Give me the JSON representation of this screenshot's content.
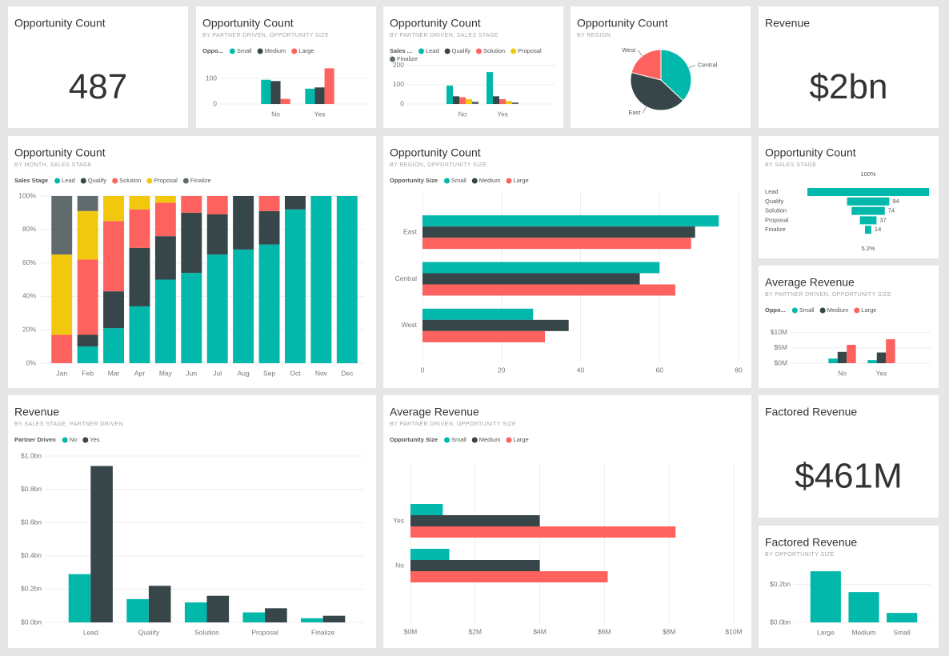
{
  "chart_data": [
    {
      "type": "card",
      "title": "Opportunity Count",
      "value": 487
    },
    {
      "type": "bar",
      "title": "Opportunity Count",
      "subtitle": "BY PARTNER DRIVEN, OPPORTUNITY SIZE",
      "legend_title": "Oppo...",
      "categories": [
        "No",
        "Yes"
      ],
      "series": [
        {
          "name": "Small",
          "color": "#01b8aa",
          "values": [
            95,
            60
          ]
        },
        {
          "name": "Medium",
          "color": "#374649",
          "values": [
            90,
            65
          ]
        },
        {
          "name": "Large",
          "color": "#fd625e",
          "values": [
            20,
            140
          ]
        }
      ],
      "ylim": [
        0,
        160
      ],
      "yticks": [
        0,
        100
      ]
    },
    {
      "type": "bar",
      "title": "Opportunity Count",
      "subtitle": "BY PARTNER DRIVEN, SALES STAGE",
      "legend_title": "Sales ...",
      "categories": [
        "No",
        "Yes"
      ],
      "series": [
        {
          "name": "Lead",
          "color": "#01b8aa",
          "values": [
            95,
            165
          ]
        },
        {
          "name": "Qualify",
          "color": "#374649",
          "values": [
            40,
            40
          ]
        },
        {
          "name": "Solution",
          "color": "#fd625e",
          "values": [
            35,
            25
          ]
        },
        {
          "name": "Proposal",
          "color": "#f2c80f",
          "values": [
            25,
            15
          ]
        },
        {
          "name": "Finalize",
          "color": "#5f6b6d",
          "values": [
            12,
            8
          ]
        }
      ],
      "ylim": [
        0,
        240
      ],
      "yticks": [
        0,
        100,
        200
      ]
    },
    {
      "type": "pie",
      "title": "Opportunity Count",
      "subtitle": "BY REGION",
      "categories": [
        "Central",
        "East",
        "West"
      ],
      "values": [
        37,
        42,
        21
      ],
      "colors": [
        "#01b8aa",
        "#374649",
        "#fd625e"
      ]
    },
    {
      "type": "card",
      "title": "Revenue",
      "value": 2000000000,
      "value_label": "$2bn"
    },
    {
      "type": "bar",
      "stacked": true,
      "title": "Opportunity Count",
      "subtitle": "BY MONTH, SALES STAGE",
      "legend_title": "Sales Stage",
      "categories": [
        "Jan",
        "Feb",
        "Mar",
        "Apr",
        "May",
        "Jun",
        "Jul",
        "Aug",
        "Sep",
        "Oct",
        "Nov",
        "Dec"
      ],
      "series": [
        {
          "name": "Lead",
          "color": "#01b8aa",
          "values": [
            0,
            10,
            21,
            34,
            50,
            54,
            65,
            68,
            71,
            92,
            100,
            100
          ]
        },
        {
          "name": "Qualify",
          "color": "#374649",
          "values": [
            0,
            7,
            22,
            35,
            26,
            36,
            24,
            32,
            20,
            8,
            0,
            0
          ]
        },
        {
          "name": "Solution",
          "color": "#fd625e",
          "values": [
            17,
            45,
            42,
            23,
            20,
            10,
            11,
            0,
            9,
            0,
            0,
            0
          ]
        },
        {
          "name": "Proposal",
          "color": "#f2c80f",
          "values": [
            48,
            29,
            15,
            8,
            4,
            0,
            0,
            0,
            0,
            0,
            0,
            0
          ]
        },
        {
          "name": "Finalize",
          "color": "#5f6b6d",
          "values": [
            35,
            9,
            0,
            0,
            0,
            0,
            0,
            0,
            0,
            0,
            0,
            0
          ]
        }
      ],
      "ylim": [
        0,
        100
      ],
      "yticks": [
        {
          "value": 0,
          "label": "0%"
        },
        {
          "value": 20,
          "label": "20%"
        },
        {
          "value": 40,
          "label": "40%"
        },
        {
          "value": 60,
          "label": "60%"
        },
        {
          "value": 80,
          "label": "80%"
        },
        {
          "value": 100,
          "label": "100%"
        }
      ]
    },
    {
      "type": "bar",
      "orientation": "horizontal",
      "title": "Opportunity Count",
      "subtitle": "BY REGION, OPPORTUNITY SIZE",
      "legend_title": "Opportunity Size",
      "categories": [
        "East",
        "Central",
        "West"
      ],
      "series": [
        {
          "name": "Small",
          "color": "#01b8aa",
          "values": [
            75,
            60,
            28
          ]
        },
        {
          "name": "Medium",
          "color": "#374649",
          "values": [
            69,
            55,
            37
          ]
        },
        {
          "name": "Large",
          "color": "#fd625e",
          "values": [
            68,
            64,
            31
          ]
        }
      ],
      "xlim": [
        0,
        80
      ],
      "xticks": [
        0,
        20,
        40,
        60,
        80
      ]
    },
    {
      "type": "funnel",
      "title": "Opportunity Count",
      "subtitle": "BY SALES STAGE",
      "categories": [
        "Lead",
        "Qualify",
        "Solution",
        "Proposal",
        "Finalize"
      ],
      "values": [
        271,
        94,
        74,
        37,
        14
      ],
      "color": "#01b8aa",
      "top_label": "100%",
      "bottom_label": "5.2%"
    },
    {
      "type": "bar",
      "title": "Average Revenue",
      "subtitle": "BY PARTNER DRIVEN, OPPORTUNITY SIZE",
      "legend_title": "Oppo...",
      "categories": [
        "No",
        "Yes"
      ],
      "series": [
        {
          "name": "Small",
          "color": "#01b8aa",
          "values": [
            1500000,
            1000000
          ]
        },
        {
          "name": "Medium",
          "color": "#374649",
          "values": [
            3700000,
            3500000
          ]
        },
        {
          "name": "Large",
          "color": "#fd625e",
          "values": [
            6000000,
            7800000
          ]
        }
      ],
      "ylim": [
        0,
        12000000
      ],
      "yticks": [
        {
          "value": 0,
          "label": "$0M"
        },
        {
          "value": 5000000,
          "label": "$5M"
        },
        {
          "value": 10000000,
          "label": "$10M"
        }
      ]
    },
    {
      "type": "bar",
      "title": "Revenue",
      "subtitle": "BY SALES STAGE, PARTNER DRIVEN",
      "legend_title": "Partner Driven",
      "categories": [
        "Lead",
        "Qualify",
        "Solution",
        "Proposal",
        "Finalize"
      ],
      "series": [
        {
          "name": "No",
          "color": "#01b8aa",
          "values": [
            290000000,
            140000000,
            120000000,
            60000000,
            25000000
          ]
        },
        {
          "name": "Yes",
          "color": "#374649",
          "values": [
            940000000,
            220000000,
            160000000,
            85000000,
            40000000
          ]
        }
      ],
      "ylim": [
        0,
        1000000000
      ],
      "yticks": [
        {
          "value": 0,
          "label": "$0.0bn"
        },
        {
          "value": 200000000,
          "label": "$0.2bn"
        },
        {
          "value": 400000000,
          "label": "$0.4bn"
        },
        {
          "value": 600000000,
          "label": "$0.6bn"
        },
        {
          "value": 800000000,
          "label": "$0.8bn"
        },
        {
          "value": 1000000000,
          "label": "$1.0bn"
        }
      ]
    },
    {
      "type": "bar",
      "orientation": "horizontal",
      "title": "Average Revenue",
      "subtitle": "BY PARTNER DRIVEN, OPPORTUNITY SIZE",
      "legend_title": "Opportunity Size",
      "categories": [
        "Yes",
        "No"
      ],
      "series": [
        {
          "name": "Small",
          "color": "#01b8aa",
          "values": [
            1000000,
            1200000
          ]
        },
        {
          "name": "Medium",
          "color": "#374649",
          "values": [
            4000000,
            4000000
          ]
        },
        {
          "name": "Large",
          "color": "#fd625e",
          "values": [
            8200000,
            6100000
          ]
        }
      ],
      "xlim": [
        0,
        10000000
      ],
      "xticks": [
        {
          "value": 0,
          "label": "$0M"
        },
        {
          "value": 2000000,
          "label": "$2M"
        },
        {
          "value": 4000000,
          "label": "$4M"
        },
        {
          "value": 6000000,
          "label": "$6M"
        },
        {
          "value": 8000000,
          "label": "$8M"
        },
        {
          "value": 10000000,
          "label": "$10M"
        }
      ]
    },
    {
      "type": "card",
      "title": "Factored Revenue",
      "value": 461000000,
      "value_label": "$461M"
    },
    {
      "type": "bar",
      "title": "Factored Revenue",
      "subtitle": "BY OPPORTUNITY SIZE",
      "categories": [
        "Large",
        "Medium",
        "Small"
      ],
      "values": [
        270000000,
        160000000,
        50000000
      ],
      "color": "#01b8aa",
      "ylim": [
        0,
        300000000
      ],
      "yticks": [
        {
          "value": 0,
          "label": "$0.0bn"
        },
        {
          "value": 200000000,
          "label": "$0.2bn"
        }
      ]
    }
  ]
}
